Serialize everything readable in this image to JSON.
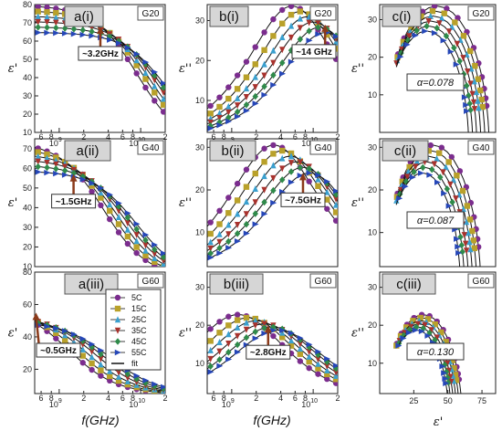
{
  "colors": {
    "5C": "#7b2d8e",
    "15C": "#b9a12a",
    "25C": "#3aa0cf",
    "35C": "#a8322d",
    "45C": "#2f8a4a",
    "55C": "#2647b8",
    "fit": "#111111",
    "arrow": "#8b3a1a"
  },
  "legend": {
    "entries": [
      {
        "label": "5C",
        "marker": "circle"
      },
      {
        "label": "15C",
        "marker": "square"
      },
      {
        "label": "25C",
        "marker": "triangle-up"
      },
      {
        "label": "35C",
        "marker": "triangle-down"
      },
      {
        "label": "45C",
        "marker": "diamond"
      },
      {
        "label": "55C",
        "marker": "triangle-right"
      },
      {
        "label": "fit",
        "marker": "line"
      }
    ]
  },
  "axis_labels": {
    "eps_real": "ε'",
    "eps_imag": "ε''",
    "freq": "f(GHz)",
    "eps_real_x": "ε'"
  },
  "chart_data": [
    {
      "id": "a1",
      "type": "line",
      "label": "a(i)",
      "sample": "G20",
      "xscale": "log",
      "xlim": [
        0.5,
        20
      ],
      "ylim": [
        10,
        80
      ],
      "yticks": [
        10,
        20,
        30,
        40,
        50,
        60,
        70,
        80
      ],
      "xmajor": [
        {
          "v": 1,
          "label": "10",
          "exp": "9"
        },
        {
          "v": 10,
          "label": "10",
          "exp": "10"
        }
      ],
      "xminor": [
        {
          "v": 0.6,
          "label": "6"
        },
        {
          "v": 0.8,
          "label": "8"
        },
        {
          "v": 2,
          "label": "2"
        },
        {
          "v": 4,
          "label": "4"
        },
        {
          "v": 6,
          "label": "6"
        },
        {
          "v": 8,
          "label": "8"
        },
        {
          "v": 20,
          "label": "2"
        }
      ],
      "model": {
        "kind": "real",
        "e_inf": 4,
        "alpha": 0.078
      },
      "series": [
        {
          "name": "5C",
          "es": 80,
          "fr": 9.0
        },
        {
          "name": "15C",
          "es": 77,
          "fr": 11.0
        },
        {
          "name": "25C",
          "es": 74,
          "fr": 13.0
        },
        {
          "name": "35C",
          "es": 71,
          "fr": 15.5
        },
        {
          "name": "45C",
          "es": 68,
          "fr": 18.0
        },
        {
          "name": "55C",
          "es": 65,
          "fr": 21.0
        }
      ],
      "annotation": {
        "text": "~3.2GHz",
        "x": 3.2,
        "y": 68
      }
    },
    {
      "id": "b1",
      "type": "line",
      "label": "b(i)",
      "sample": "G20",
      "xscale": "log",
      "xlim": [
        0.5,
        20
      ],
      "ylim": [
        2,
        34
      ],
      "yticks": [
        10,
        20,
        30
      ],
      "xmajor": [
        {
          "v": 1,
          "label": "10",
          "exp": "9"
        },
        {
          "v": 10,
          "label": "10",
          "exp": "10"
        }
      ],
      "xminor": [
        {
          "v": 0.6,
          "label": "6"
        },
        {
          "v": 0.8,
          "label": "8"
        },
        {
          "v": 2,
          "label": "2"
        },
        {
          "v": 4,
          "label": "4"
        },
        {
          "v": 6,
          "label": "6"
        },
        {
          "v": 8,
          "label": "8"
        },
        {
          "v": 20,
          "label": "2"
        }
      ],
      "model": {
        "kind": "imag",
        "e_inf": 4,
        "alpha": 0.078
      },
      "series": [
        {
          "name": "5C",
          "es": 80,
          "fr": 5.5
        },
        {
          "name": "15C",
          "es": 77,
          "fr": 7.0
        },
        {
          "name": "25C",
          "es": 74,
          "fr": 8.5
        },
        {
          "name": "35C",
          "es": 71,
          "fr": 10.0
        },
        {
          "name": "45C",
          "es": 68,
          "fr": 12.0
        },
        {
          "name": "55C",
          "es": 65,
          "fr": 14.0
        }
      ],
      "annotation": {
        "text": "~14 GHz",
        "x": 14,
        "y": 29
      }
    },
    {
      "id": "c1",
      "type": "scatter",
      "label": "c(i)",
      "sample": "G20",
      "xlim": [
        0,
        85
      ],
      "ylim": [
        0,
        34
      ],
      "yticks": [
        10,
        20,
        30
      ],
      "xticks": [],
      "model": {
        "kind": "colecole",
        "e_inf": 4,
        "alpha": 0.078
      },
      "series": [
        {
          "name": "5C",
          "es": 80
        },
        {
          "name": "15C",
          "es": 77
        },
        {
          "name": "25C",
          "es": 74
        },
        {
          "name": "35C",
          "es": 71
        },
        {
          "name": "45C",
          "es": 68
        },
        {
          "name": "55C",
          "es": 65
        }
      ],
      "alpha_label": "α=0.078"
    },
    {
      "id": "a2",
      "type": "line",
      "label": "a(ii)",
      "sample": "G40",
      "xscale": "log",
      "xlim": [
        0.5,
        20
      ],
      "ylim": [
        10,
        75
      ],
      "yticks": [
        10,
        20,
        30,
        40,
        50,
        60,
        70
      ],
      "xmajor": [],
      "xminor": [],
      "model": {
        "kind": "real",
        "e_inf": 4,
        "alpha": 0.087
      },
      "series": [
        {
          "name": "5C",
          "es": 74,
          "fr": 3.5
        },
        {
          "name": "15C",
          "es": 71,
          "fr": 4.3
        },
        {
          "name": "25C",
          "es": 68,
          "fr": 5.2
        },
        {
          "name": "35C",
          "es": 65,
          "fr": 6.3
        },
        {
          "name": "45C",
          "es": 62,
          "fr": 7.5
        },
        {
          "name": "55C",
          "es": 59,
          "fr": 9.0
        }
      ],
      "annotation": {
        "text": "~1.5GHz",
        "x": 1.5,
        "y": 57
      }
    },
    {
      "id": "b2",
      "type": "line",
      "label": "b(ii)",
      "sample": "G40",
      "xscale": "log",
      "xlim": [
        0.5,
        20
      ],
      "ylim": [
        2,
        32
      ],
      "yticks": [
        10,
        20,
        30
      ],
      "xmajor": [],
      "xminor": [],
      "model": {
        "kind": "imag",
        "e_inf": 4,
        "alpha": 0.087
      },
      "series": [
        {
          "name": "5C",
          "es": 74,
          "fr": 3.3
        },
        {
          "name": "15C",
          "es": 71,
          "fr": 4.2
        },
        {
          "name": "25C",
          "es": 68,
          "fr": 5.2
        },
        {
          "name": "35C",
          "es": 65,
          "fr": 6.3
        },
        {
          "name": "45C",
          "es": 62,
          "fr": 7.5
        },
        {
          "name": "55C",
          "es": 59,
          "fr": 9.0
        }
      ],
      "annotation": {
        "text": "~7.5GHz",
        "x": 7.5,
        "y": 24
      }
    },
    {
      "id": "c2",
      "type": "scatter",
      "label": "c(ii)",
      "sample": "G40",
      "xlim": [
        0,
        85
      ],
      "ylim": [
        2,
        32
      ],
      "yticks": [
        10,
        20,
        30
      ],
      "xticks": [],
      "model": {
        "kind": "colecole",
        "e_inf": 4,
        "alpha": 0.087
      },
      "series": [
        {
          "name": "5C",
          "es": 74
        },
        {
          "name": "15C",
          "es": 71
        },
        {
          "name": "25C",
          "es": 68
        },
        {
          "name": "35C",
          "es": 65
        },
        {
          "name": "45C",
          "es": 62
        },
        {
          "name": "55C",
          "es": 59
        }
      ],
      "alpha_label": "α=0.087"
    },
    {
      "id": "a3",
      "type": "line",
      "label": "a(iii)",
      "sample": "G60",
      "xscale": "log",
      "xlim": [
        0.5,
        20
      ],
      "ylim": [
        5,
        80
      ],
      "yticks": [
        20,
        40,
        60,
        80
      ],
      "xmajor": [
        {
          "v": 1,
          "label": "10",
          "exp": "9"
        },
        {
          "v": 10,
          "label": "10",
          "exp": "10"
        }
      ],
      "xminor": [
        {
          "v": 0.6,
          "label": "6"
        },
        {
          "v": 0.8,
          "label": "8"
        },
        {
          "v": 2,
          "label": "2"
        },
        {
          "v": 4,
          "label": "4"
        },
        {
          "v": 6,
          "label": "6"
        },
        {
          "v": 8,
          "label": "8"
        },
        {
          "v": 20,
          "label": "2"
        }
      ],
      "model": {
        "kind": "real",
        "e_inf": 4,
        "alpha": 0.13
      },
      "series": [
        {
          "name": "5C",
          "es": 60,
          "fr": 1.3
        },
        {
          "name": "15C",
          "es": 58,
          "fr": 1.7
        },
        {
          "name": "25C",
          "es": 56,
          "fr": 2.2
        },
        {
          "name": "35C",
          "es": 54,
          "fr": 2.8
        },
        {
          "name": "45C",
          "es": 52,
          "fr": 3.5
        },
        {
          "name": "55C",
          "es": 50,
          "fr": 4.3
        }
      ],
      "annotation": {
        "text": "~0.5GHz",
        "x": 0.52,
        "y": 55
      }
    },
    {
      "id": "b3",
      "type": "line",
      "label": "b(iii)",
      "sample": "G60",
      "xscale": "log",
      "xlim": [
        0.5,
        20
      ],
      "ylim": [
        2,
        34
      ],
      "yticks": [
        10,
        20,
        30
      ],
      "xmajor": [
        {
          "v": 1,
          "label": "10",
          "exp": "9"
        },
        {
          "v": 10,
          "label": "10",
          "exp": "10"
        }
      ],
      "xminor": [
        {
          "v": 0.6,
          "label": "6"
        },
        {
          "v": 0.8,
          "label": "8"
        },
        {
          "v": 2,
          "label": "2"
        },
        {
          "v": 4,
          "label": "4"
        },
        {
          "v": 6,
          "label": "6"
        },
        {
          "v": 8,
          "label": "8"
        },
        {
          "v": 20,
          "label": "2"
        }
      ],
      "model": {
        "kind": "imag",
        "e_inf": 4,
        "alpha": 0.13
      },
      "series": [
        {
          "name": "5C",
          "es": 60,
          "fr": 1.2
        },
        {
          "name": "15C",
          "es": 58,
          "fr": 1.6
        },
        {
          "name": "25C",
          "es": 56,
          "fr": 2.0
        },
        {
          "name": "35C",
          "es": 54,
          "fr": 2.5
        },
        {
          "name": "45C",
          "es": 52,
          "fr": 3.1
        },
        {
          "name": "55C",
          "es": 50,
          "fr": 3.7
        }
      ],
      "annotation": {
        "text": "~2.8GHz",
        "x": 2.8,
        "y": 20
      }
    },
    {
      "id": "c3",
      "type": "scatter",
      "label": "c(iii)",
      "sample": "G60",
      "xlim": [
        0,
        85
      ],
      "ylim": [
        2,
        34
      ],
      "yticks": [
        10,
        20,
        30
      ],
      "xticks": [
        25,
        50,
        75
      ],
      "model": {
        "kind": "colecole",
        "e_inf": 4,
        "alpha": 0.13
      },
      "series": [
        {
          "name": "5C",
          "es": 60
        },
        {
          "name": "15C",
          "es": 58
        },
        {
          "name": "25C",
          "es": 56
        },
        {
          "name": "35C",
          "es": 54
        },
        {
          "name": "45C",
          "es": 52
        },
        {
          "name": "55C",
          "es": 50
        }
      ],
      "alpha_label": "α=0.130"
    }
  ]
}
